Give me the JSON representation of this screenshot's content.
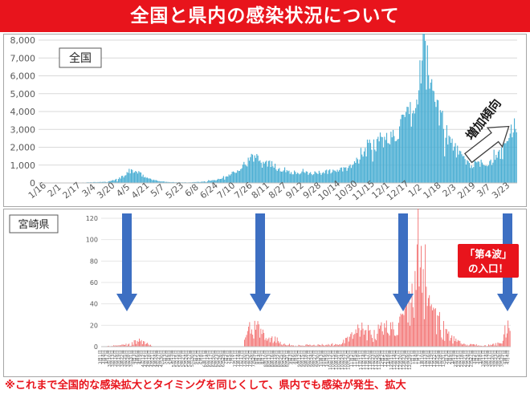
{
  "title": "全国と県内の感染状況について",
  "footnote": "※これまで全国的な感染拡大とタイミングを同じくして、県内でも感染が発生、拡大",
  "colors": {
    "title_bg": "#e8141c",
    "national_bars": "#4aaed3",
    "miyazaki_bars": "#f26b6b",
    "arrow": "#3d6fc2",
    "callout_bg": "#e8141c"
  },
  "icons": [
    "down-arrow-icon",
    "diagonal-up-arrow-icon"
  ],
  "chart_data": [
    {
      "type": "bar",
      "panel_label": "全国",
      "annotation": "増加傾向",
      "xlabel": "",
      "ylabel": "",
      "ylim": [
        0,
        8000
      ],
      "yticks": [
        "0",
        "1,000",
        "2,000",
        "3,000",
        "4,000",
        "5,000",
        "6,000",
        "7,000",
        "8,000"
      ],
      "xticks": [
        "1/16",
        "2/1",
        "2/17",
        "3/4",
        "3/20",
        "4/5",
        "4/21",
        "5/7",
        "5/23",
        "6/8",
        "6/24",
        "7/10",
        "7/26",
        "8/11",
        "8/27",
        "9/12",
        "9/28",
        "10/14",
        "10/30",
        "11/15",
        "12/1",
        "12/17",
        "1/2",
        "1/18",
        "2/3",
        "2/19",
        "3/7",
        "3/23"
      ],
      "grid": true,
      "points": [
        [
          "2020-01-16",
          0
        ],
        [
          "2020-02-20",
          10
        ],
        [
          "2020-03-05",
          40
        ],
        [
          "2020-03-20",
          60
        ],
        [
          "2020-03-28",
          200
        ],
        [
          "2020-04-05",
          400
        ],
        [
          "2020-04-11",
          700
        ],
        [
          "2020-04-18",
          550
        ],
        [
          "2020-04-25",
          300
        ],
        [
          "2020-05-05",
          120
        ],
        [
          "2020-05-15",
          50
        ],
        [
          "2020-05-31",
          30
        ],
        [
          "2020-06-15",
          60
        ],
        [
          "2020-06-28",
          150
        ],
        [
          "2020-07-10",
          400
        ],
        [
          "2020-07-22",
          900
        ],
        [
          "2020-08-01",
          1350
        ],
        [
          "2020-08-07",
          1550
        ],
        [
          "2020-08-15",
          1200
        ],
        [
          "2020-08-27",
          800
        ],
        [
          "2020-09-12",
          550
        ],
        [
          "2020-10-01",
          550
        ],
        [
          "2020-10-14",
          650
        ],
        [
          "2020-10-30",
          800
        ],
        [
          "2020-11-10",
          1300
        ],
        [
          "2020-11-20",
          2300
        ],
        [
          "2020-12-01",
          2200
        ],
        [
          "2020-12-17",
          3000
        ],
        [
          "2020-12-26",
          3700
        ],
        [
          "2021-01-02",
          4000
        ],
        [
          "2021-01-05",
          6000
        ],
        [
          "2021-01-08",
          7850
        ],
        [
          "2021-01-13",
          6000
        ],
        [
          "2021-01-18",
          5000
        ],
        [
          "2021-01-25",
          3800
        ],
        [
          "2021-02-03",
          2200
        ],
        [
          "2021-02-15",
          1300
        ],
        [
          "2021-02-22",
          1000
        ],
        [
          "2021-03-07",
          1100
        ],
        [
          "2021-03-15",
          1300
        ],
        [
          "2021-03-23",
          1700
        ],
        [
          "2021-03-31",
          2800
        ],
        [
          "2021-04-05",
          3450
        ]
      ]
    },
    {
      "type": "bar",
      "panel_label": "宮崎県",
      "callout_lines": [
        "「第4波」",
        "の入口！"
      ],
      "xlabel": "",
      "ylabel": "",
      "ylim": [
        0,
        120
      ],
      "yticks": [
        "0",
        "20",
        "40",
        "60",
        "80",
        "100",
        "120"
      ],
      "xtick_labels": [
        "3月1日",
        "3月15日",
        "3月29日",
        "4月12日",
        "4月26日",
        "5月10日",
        "5月24日",
        "6月7日",
        "6月21日",
        "7月5日",
        "7月19日",
        "8月2日",
        "8月16日",
        "8月30日",
        "9月13日",
        "9月27日",
        "10月11日",
        "10月25日",
        "11月8日",
        "11月22日",
        "12月6日",
        "12月20日",
        "1月3日",
        "1月17日",
        "1月31日",
        "2月14日",
        "2月28日",
        "3月14日",
        "3月28日"
      ],
      "grid": true,
      "points": [
        [
          "2020-03-01",
          0
        ],
        [
          "2020-03-28",
          2
        ],
        [
          "2020-04-05",
          5
        ],
        [
          "2020-04-12",
          4
        ],
        [
          "2020-04-20",
          0
        ],
        [
          "2020-07-18",
          0
        ],
        [
          "2020-07-21",
          25
        ],
        [
          "2020-07-26",
          18
        ],
        [
          "2020-08-02",
          15
        ],
        [
          "2020-08-10",
          12
        ],
        [
          "2020-08-16",
          8
        ],
        [
          "2020-08-25",
          3
        ],
        [
          "2020-09-05",
          1
        ],
        [
          "2020-10-20",
          2
        ],
        [
          "2020-11-10",
          15
        ],
        [
          "2020-11-20",
          12
        ],
        [
          "2020-12-01",
          16
        ],
        [
          "2020-12-10",
          18
        ],
        [
          "2020-12-20",
          20
        ],
        [
          "2020-12-28",
          35
        ],
        [
          "2021-01-03",
          60
        ],
        [
          "2021-01-05",
          108
        ],
        [
          "2021-01-08",
          75
        ],
        [
          "2021-01-12",
          60
        ],
        [
          "2021-01-16",
          40
        ],
        [
          "2021-01-22",
          30
        ],
        [
          "2021-01-28",
          22
        ],
        [
          "2021-02-05",
          8
        ],
        [
          "2021-02-20",
          2
        ],
        [
          "2021-03-14",
          1
        ],
        [
          "2021-03-28",
          3
        ],
        [
          "2021-04-03",
          18
        ],
        [
          "2021-04-05",
          28
        ]
      ]
    }
  ]
}
